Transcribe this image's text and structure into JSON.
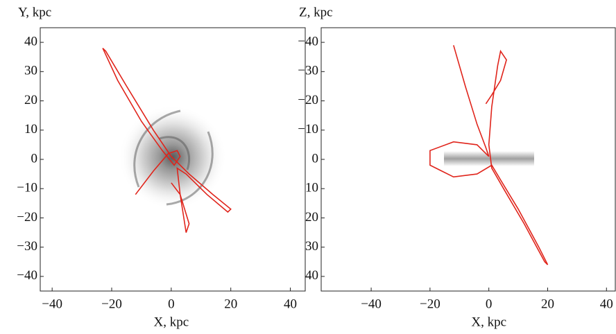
{
  "chart_data": [
    {
      "type": "line",
      "x_label": "X, kpc",
      "y_label": "Y, kpc",
      "xlim": [
        -44,
        45
      ],
      "ylim": [
        -45,
        45
      ],
      "xticks": [
        {
          "value": -40,
          "label": "−40"
        },
        {
          "value": -20,
          "label": "−20"
        },
        0,
        20,
        40
      ],
      "yticks": [
        40,
        30,
        20,
        10,
        0,
        {
          "value": -10,
          "label": "−10"
        },
        {
          "value": -20,
          "label": "−20"
        },
        {
          "value": -30,
          "label": "−30"
        },
        {
          "value": -40,
          "label": "−40"
        }
      ],
      "y_inverted": false,
      "series": [
        {
          "color": "#e0241b",
          "x": [
            -12,
            -6,
            -1,
            2,
            3,
            1,
            -3,
            -10,
            -18,
            -23,
            -22,
            -15,
            -6,
            0,
            6,
            14,
            20,
            19,
            12,
            5,
            2,
            3,
            5,
            6,
            3,
            0
          ],
          "values": [
            -12,
            -4,
            2,
            3,
            1,
            -2,
            3,
            13,
            27,
            38,
            37,
            25,
            10,
            1,
            -5,
            -12,
            -17,
            -18,
            -12,
            -5,
            -3,
            -12,
            -25,
            -22,
            -12,
            -8
          ]
        }
      ]
    },
    {
      "type": "line",
      "x_label": "X, kpc",
      "y_label": "Z, kpc",
      "xlim": [
        -57,
        43
      ],
      "ylim": [
        -45,
        45
      ],
      "xticks": [
        {
          "value": -40,
          "label": "−40"
        },
        {
          "value": -20,
          "label": "−20"
        },
        0,
        20,
        40
      ],
      "yticks": [
        {
          "value": -40,
          "label": "−40"
        },
        {
          "value": -30,
          "label": "−30"
        },
        {
          "value": -20,
          "label": "−20"
        },
        {
          "value": -10,
          "label": "−10"
        },
        0,
        10,
        20,
        30,
        40
      ],
      "y_inverted": true,
      "series": [
        {
          "color": "#e0241b",
          "x": [
            -12,
            -8,
            -4,
            -1,
            0,
            -4,
            -12,
            -20,
            -20,
            -12,
            -4,
            1,
            4,
            10,
            17,
            20,
            19,
            12,
            5,
            1,
            0,
            1,
            3,
            4,
            6,
            4,
            1,
            -1
          ],
          "values": [
            -39,
            -25,
            -12,
            -4,
            -1,
            -5,
            -6,
            -3,
            2,
            6,
            5,
            2,
            7,
            17,
            30,
            36,
            35,
            22,
            10,
            3,
            -5,
            -18,
            -32,
            -37,
            -34,
            -27,
            -22,
            -19
          ]
        }
      ]
    }
  ]
}
